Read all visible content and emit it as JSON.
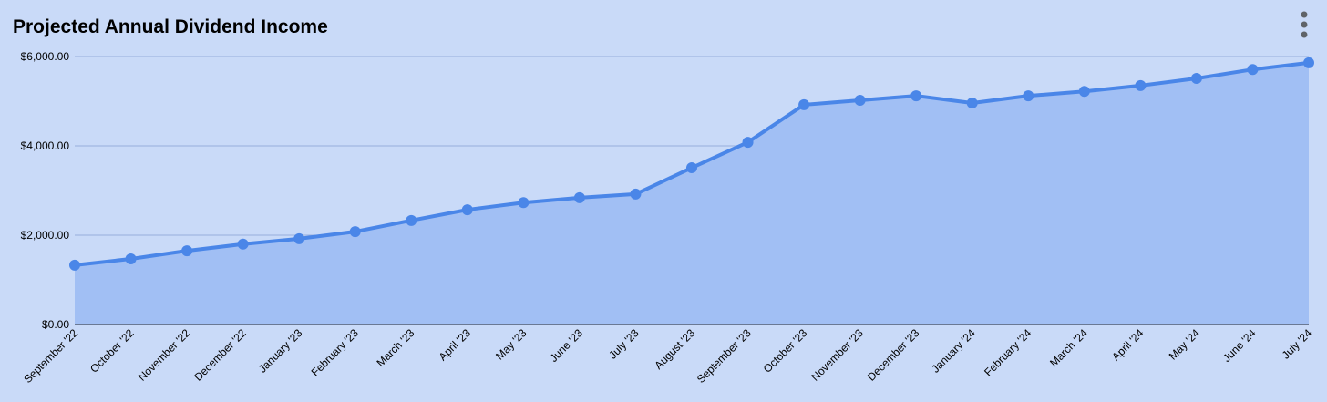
{
  "chart_data": {
    "type": "area",
    "title": "Projected Annual Dividend Income",
    "categories": [
      "September '22",
      "October '22",
      "November '22",
      "December '22",
      "January '23",
      "February '23",
      "March '23",
      "April '23",
      "May '23",
      "June '23",
      "July '23",
      "August '23",
      "September '23",
      "October '23",
      "November '23",
      "December '23",
      "January '24",
      "February '24",
      "March '24",
      "April '24",
      "May '24",
      "June '24",
      "July '24"
    ],
    "series": [
      {
        "color": "#4a86e8",
        "values": [
          1330,
          1470,
          1650,
          1800,
          1920,
          2080,
          2330,
          2570,
          2730,
          2840,
          2920,
          3510,
          4080,
          4920,
          5020,
          5120,
          4960,
          5120,
          5220,
          5350,
          5510,
          5710,
          5860
        ]
      }
    ],
    "ylim": [
      0,
      6000
    ],
    "yticks": [
      {
        "value": 0,
        "label": "$0.00"
      },
      {
        "value": 2000,
        "label": "$2,000.00"
      },
      {
        "value": 4000,
        "label": "$4,000.00"
      },
      {
        "value": 6000,
        "label": "$6,000.00"
      }
    ],
    "grid": true
  }
}
